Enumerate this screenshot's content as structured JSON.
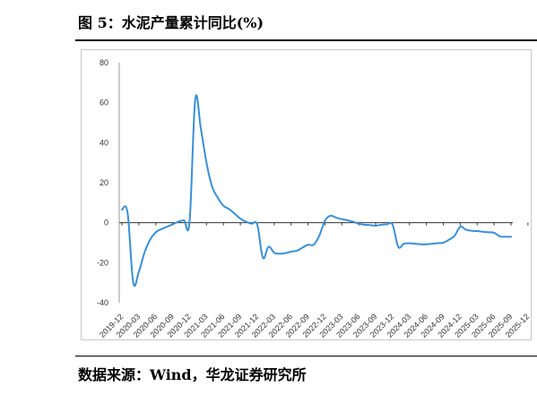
{
  "figure": {
    "title": "图 5：水泥产量累计同比(%)",
    "source": "数据来源：Wind，华龙证券研究所"
  },
  "chart_data": {
    "type": "line",
    "title": "",
    "xlabel": "",
    "ylabel": "",
    "ylim": [
      -40,
      80
    ],
    "yticks": [
      -40,
      -20,
      0,
      20,
      40,
      60,
      80
    ],
    "grid": false,
    "legend": "none",
    "color": "#3a8fd6",
    "x_tick_labels": [
      "2019-12",
      "2020-03",
      "2020-06",
      "2020-09",
      "2020-12",
      "2021-03",
      "2021-06",
      "2021-09",
      "2021-12",
      "2022-03",
      "2022-06",
      "2022-09",
      "2022-12",
      "2023-03",
      "2023-06",
      "2023-09",
      "2023-12",
      "2024-03",
      "2024-06",
      "2024-09",
      "2024-12",
      "2025-03",
      "2025-06",
      "2025-09",
      "2025-12"
    ],
    "series": [
      {
        "values": [
          6.5,
          5.0,
          -29.8,
          -24.5,
          -15.0,
          -8.5,
          -4.8,
          -3.2,
          -2.0,
          -0.8,
          0.5,
          1.2,
          0.8,
          61.5,
          47.0,
          30.0,
          18.0,
          12.5,
          8.5,
          6.8,
          4.5,
          2.0,
          0.5,
          -0.5,
          -1.0,
          -17.5,
          -12.0,
          -15.0,
          -15.5,
          -15.2,
          -14.5,
          -14.0,
          -12.5,
          -11.0,
          -11.0,
          -6.5,
          1.0,
          3.5,
          2.5,
          1.8,
          1.2,
          0.5,
          -0.5,
          -1.0,
          -1.2,
          -1.5,
          -1.0,
          -0.8,
          -1.0,
          -12.0,
          -10.5,
          -10.3,
          -10.5,
          -10.8,
          -10.8,
          -10.5,
          -10.2,
          -10.0,
          -8.5,
          -6.5,
          -2.0,
          -3.5,
          -4.0,
          -4.2,
          -4.5,
          -4.8,
          -5.0,
          -6.8,
          -7.0,
          -7.0
        ]
      }
    ]
  }
}
